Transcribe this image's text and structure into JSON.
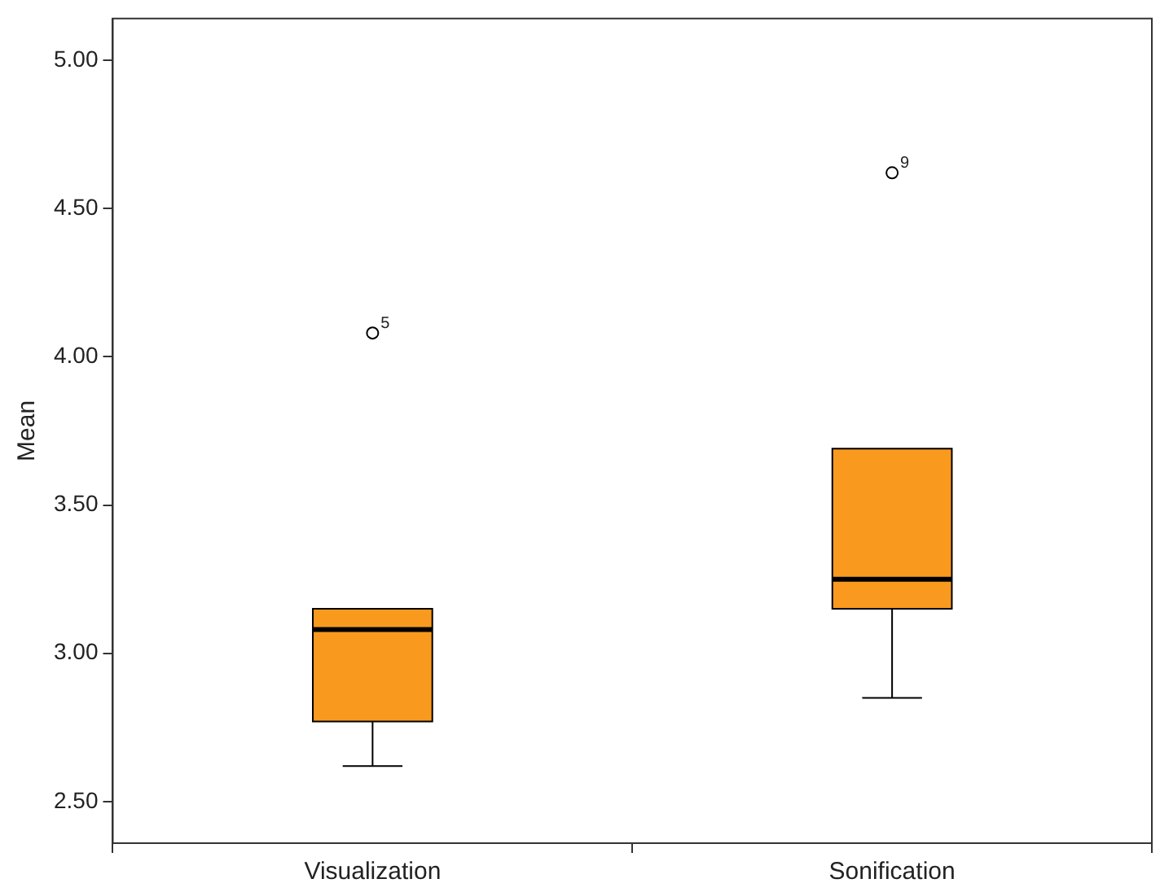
{
  "chart_data": {
    "type": "box",
    "ylabel": "Mean",
    "categories": [
      "Visualization",
      "Sonification"
    ],
    "color": "#f99a1e",
    "boxes": [
      {
        "low": 2.62,
        "q1": 2.77,
        "median": 3.08,
        "q3": 3.15,
        "high": 3.15,
        "outliers": [
          4.08
        ]
      },
      {
        "low": 2.85,
        "q1": 3.15,
        "median": 3.25,
        "q3": 3.69,
        "high": 3.69,
        "outliers": [
          4.62
        ]
      }
    ],
    "ylim": [
      2.36,
      5.14
    ],
    "yticks": [
      {
        "value": 2.5,
        "label": "2.50"
      },
      {
        "value": 3,
        "label": "3.00"
      },
      {
        "value": 3.5,
        "label": "3.50"
      },
      {
        "value": 4,
        "label": "4.00"
      },
      {
        "value": 4.5,
        "label": "4.50"
      },
      {
        "value": 5,
        "label": "5.00"
      }
    ],
    "annotations": [
      "5",
      "9"
    ]
  }
}
